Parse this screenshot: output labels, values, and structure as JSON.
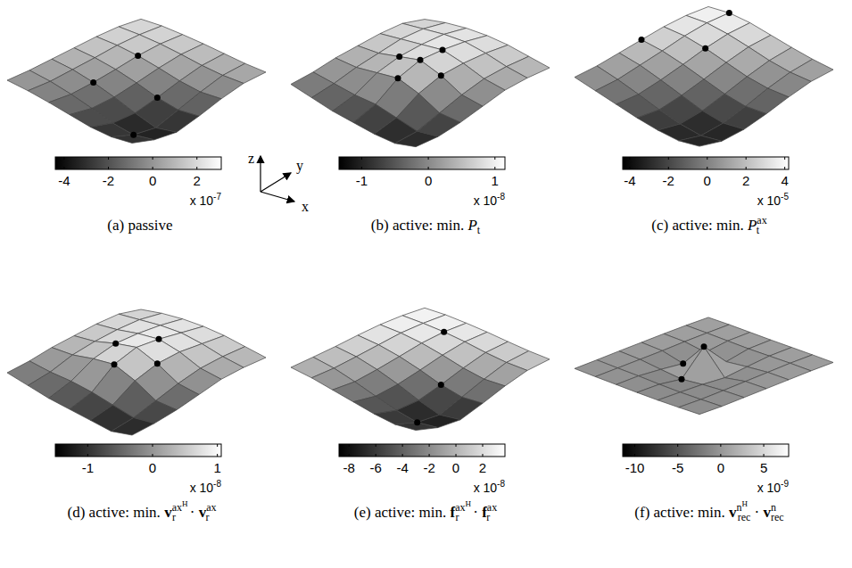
{
  "chart_data": [
    {
      "type": "surface",
      "caption": {
        "label": "(a)",
        "text": "passive",
        "math": []
      },
      "cells": [
        [
          0,
          -0.5,
          -1.2,
          -2,
          -2.8,
          -3.2,
          -3
        ],
        [
          0.3,
          -0.3,
          -1.2,
          -2.3,
          -3.5,
          -4.2,
          -3.8
        ],
        [
          0.8,
          0.3,
          -0.6,
          -1.8,
          -3.2,
          -4.4,
          -3.9
        ],
        [
          1.3,
          0.9,
          0.2,
          -0.8,
          -2,
          -2.8,
          -2.6
        ],
        [
          1.8,
          1.6,
          1.1,
          0.3,
          -0.6,
          -1.2,
          -1.1
        ],
        [
          2.1,
          2,
          1.7,
          1.2,
          0.6,
          0.2,
          0.1
        ],
        [
          2,
          2.1,
          1.9,
          1.6,
          1.2,
          0.8,
          0.6
        ]
      ],
      "colorbar_range": [
        -4.4,
        3.1
      ],
      "colorbar_ticks": [
        -4,
        -2,
        0,
        2
      ],
      "colorbar_multiplier": {
        "base": "x 10",
        "exponent": "-7"
      },
      "points": [
        [
          2,
          4
        ],
        [
          2,
          2
        ],
        [
          4,
          3
        ],
        [
          5,
          1
        ]
      ]
    },
    {
      "type": "surface",
      "caption": {
        "label": "(b)",
        "text": "active: min.",
        "math": [
          {
            "base": "P",
            "sub": "t",
            "bold": false
          }
        ]
      },
      "cells": [
        [
          -0.2,
          -0.5,
          -0.8,
          -1,
          -1.2,
          -1.3,
          -1.1
        ],
        [
          0,
          -0.2,
          -0.4,
          -0.5,
          -0.8,
          -1.1,
          -1
        ],
        [
          0.3,
          0.2,
          0.3,
          0.4,
          0,
          -0.6,
          -0.7
        ],
        [
          0.5,
          0.5,
          0.7,
          0.9,
          0.5,
          -0.1,
          -0.3
        ],
        [
          0.7,
          0.8,
          0.9,
          1,
          0.7,
          0.3,
          0.1
        ],
        [
          0.8,
          0.9,
          1,
          1,
          0.8,
          0.5,
          0.3
        ],
        [
          0.6,
          0.8,
          0.9,
          0.9,
          0.8,
          0.6,
          0.4
        ]
      ],
      "colorbar_range": [
        -1.34,
        1.15
      ],
      "colorbar_ticks": [
        -1,
        0,
        1
      ],
      "colorbar_multiplier": {
        "base": "x 10",
        "exponent": "-8"
      },
      "points": [
        [
          3,
          4
        ],
        [
          2,
          3
        ],
        [
          4,
          3
        ],
        [
          3,
          2
        ],
        [
          3,
          3
        ]
      ]
    },
    {
      "type": "surface",
      "caption": {
        "label": "(c)",
        "text": "active: min.",
        "math": [
          {
            "base": "P",
            "sub": "t",
            "sup": "ax",
            "bold": false
          }
        ]
      },
      "cells": [
        [
          0.5,
          -0.5,
          -1.5,
          -2.5,
          -3.3,
          -3.8,
          -3.5
        ],
        [
          1,
          0,
          -1.2,
          -2.5,
          -3.6,
          -4.3,
          -4
        ],
        [
          1.8,
          1,
          -0.2,
          -1.5,
          -2.8,
          -3.6,
          -3.4
        ],
        [
          2.6,
          2,
          1,
          -0.2,
          -1.4,
          -2.2,
          -2.2
        ],
        [
          3.4,
          3.1,
          2.3,
          1.2,
          0.1,
          -0.6,
          -0.8
        ],
        [
          3.9,
          3.9,
          3.3,
          2.4,
          1.4,
          0.7,
          0.4
        ],
        [
          4,
          4.2,
          3.8,
          3,
          2.2,
          1.5,
          1
        ]
      ],
      "colorbar_range": [
        -4.36,
        4.2
      ],
      "colorbar_ticks": [
        -4,
        -2,
        0,
        2,
        4
      ],
      "colorbar_multiplier": {
        "base": "x 10",
        "exponent": "-5"
      },
      "points": [
        [
          1,
          6
        ],
        [
          2,
          4
        ],
        [
          0,
          3
        ]
      ]
    },
    {
      "type": "surface",
      "caption": {
        "label": "(d)",
        "text": "active: min.",
        "math": [
          {
            "base": "v",
            "sub": "r",
            "sup": "ax",
            "supsup": "H",
            "bold": true
          },
          {
            "op": "·"
          },
          {
            "base": "v",
            "sub": "r",
            "sup": "ax",
            "bold": true
          }
        ]
      },
      "cells": [
        [
          -0.3,
          -0.6,
          -0.9,
          -1.1,
          -1.3,
          -1.5,
          -1.3
        ],
        [
          -0.1,
          -0.3,
          -0.4,
          -0.6,
          -0.9,
          -1.2,
          -1.1
        ],
        [
          0.2,
          0.2,
          0.4,
          0.5,
          0,
          -0.7,
          -0.8
        ],
        [
          0.4,
          0.5,
          0.8,
          1,
          0.5,
          -0.2,
          -0.4
        ],
        [
          0.6,
          0.7,
          0.9,
          1,
          0.7,
          0.2,
          0
        ],
        [
          0.7,
          0.8,
          0.9,
          0.9,
          0.7,
          0.4,
          0.2
        ],
        [
          0.5,
          0.7,
          0.8,
          0.8,
          0.7,
          0.5,
          0.3
        ]
      ],
      "colorbar_range": [
        -1.5,
        1.06
      ],
      "colorbar_ticks": [
        -1,
        0,
        1
      ],
      "colorbar_multiplier": {
        "base": "x 10",
        "exponent": "-8"
      },
      "points": [
        [
          3,
          4
        ],
        [
          2,
          3
        ],
        [
          4,
          3
        ],
        [
          3,
          2
        ]
      ]
    },
    {
      "type": "surface",
      "caption": {
        "label": "(e)",
        "text": "active: min.",
        "math": [
          {
            "base": "f",
            "sub": "r",
            "sup": "ax",
            "supsup": "H",
            "bold": true
          },
          {
            "op": "·"
          },
          {
            "base": "f",
            "sub": "r",
            "sup": "ax",
            "bold": true
          }
        ]
      },
      "cells": [
        [
          0,
          -1,
          -2.5,
          -4,
          -5.5,
          -6.5,
          -6
        ],
        [
          0.7,
          -0.5,
          -2.5,
          -4.8,
          -7,
          -8.5,
          -7.8
        ],
        [
          1.5,
          0.6,
          -1.2,
          -3.6,
          -6.4,
          -8.7,
          -7.9
        ],
        [
          2.5,
          1.8,
          0.4,
          -1.6,
          -4,
          -5.6,
          -5.2
        ],
        [
          3.3,
          3,
          2.1,
          0.6,
          -1.2,
          -2.4,
          -2.2
        ],
        [
          3.6,
          3.5,
          3.1,
          2.3,
          1.2,
          0.4,
          0.2
        ],
        [
          3.4,
          3.6,
          3.3,
          2.8,
          2.1,
          1.5,
          1.2
        ]
      ],
      "colorbar_range": [
        -8.75,
        3.67
      ],
      "colorbar_ticks": [
        -8,
        -6,
        -4,
        -2,
        0,
        2
      ],
      "colorbar_multiplier": {
        "base": "x 10",
        "exponent": "-8"
      },
      "points": [
        [
          2,
          5
        ],
        [
          4,
          3
        ],
        [
          5,
          1
        ]
      ]
    },
    {
      "type": "surface",
      "caption": {
        "label": "(f)",
        "text": "active: min.",
        "math": [
          {
            "base": "v",
            "sub": "rec",
            "sup": "n",
            "supsup": "H",
            "bold": true
          },
          {
            "op": "·"
          },
          {
            "base": "v",
            "sub": "rec",
            "sup": "n",
            "bold": true
          }
        ]
      },
      "cells": [
        [
          -0.5,
          -0.8,
          -1,
          -1.2,
          -1.3,
          -1.2,
          -1
        ],
        [
          -0.3,
          -0.6,
          -0.8,
          -1.2,
          -1.4,
          -1.3,
          -1.1
        ],
        [
          0,
          -0.4,
          -1.5,
          -2.5,
          -1.6,
          -1,
          -0.8
        ],
        [
          0.2,
          -0.2,
          -2.5,
          7.9,
          -2.2,
          -0.6,
          -0.5
        ],
        [
          0.4,
          0.2,
          -1.2,
          -2,
          -1,
          -0.2,
          -0.2
        ],
        [
          0.5,
          0.4,
          0.2,
          0,
          0.1,
          0.2,
          0.1
        ],
        [
          0.4,
          0.5,
          0.4,
          0.3,
          0.3,
          0.3,
          0.2
        ]
      ],
      "colorbar_range": [
        -11.4,
        7.9
      ],
      "colorbar_ticks": [
        -10,
        -5,
        0,
        5
      ],
      "colorbar_multiplier": {
        "base": "x 10",
        "exponent": "-9"
      },
      "points": [
        [
          3,
          3
        ],
        [
          2,
          3
        ],
        [
          3,
          2
        ]
      ]
    }
  ],
  "axes_labels": [
    "x",
    "y",
    "z"
  ]
}
